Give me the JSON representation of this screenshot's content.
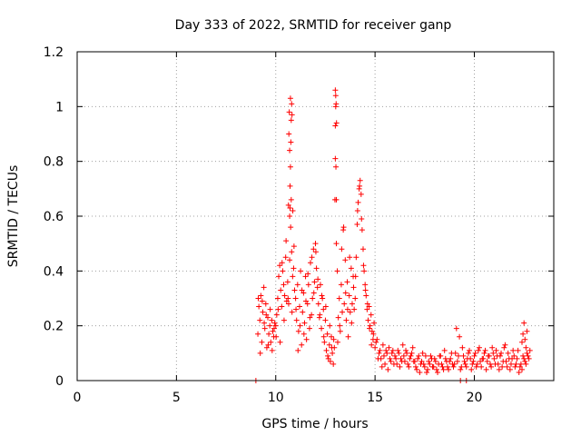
{
  "chart_data": {
    "type": "scatter",
    "title": "Day 333 of 2022, SRMTID for receiver ganp",
    "xlabel": "GPS time / hours",
    "ylabel": "SRMTID / TECUs",
    "xlim": [
      0,
      24
    ],
    "ylim": [
      0,
      1.2
    ],
    "xticks": [
      0,
      5,
      10,
      15,
      20
    ],
    "xtick_labels": [
      "0",
      "5",
      "10",
      "15",
      "20"
    ],
    "yticks": [
      0,
      0.2,
      0.4,
      0.6,
      0.8,
      1.0,
      1.2
    ],
    "ytick_labels": [
      "0",
      "0.2",
      "0.4",
      "0.6",
      "0.8",
      "1",
      "1.2"
    ],
    "grid": true,
    "marker": "+",
    "color": "#ff0000",
    "series": [
      {
        "name": "SRMTID",
        "x": [
          9.0,
          19.3,
          19.6,
          9.1,
          9.15,
          9.2,
          9.25,
          9.3,
          9.35,
          9.4,
          9.45,
          9.5,
          9.55,
          9.6,
          9.65,
          9.7,
          9.75,
          9.8,
          9.85,
          9.9,
          9.95,
          9.12,
          9.22,
          9.32,
          9.42,
          9.52,
          9.62,
          9.72,
          9.82,
          9.92,
          10.0,
          10.05,
          10.1,
          10.15,
          10.2,
          10.25,
          10.3,
          10.35,
          10.4,
          10.45,
          10.5,
          10.55,
          10.6,
          10.65,
          10.7,
          10.75,
          10.8,
          10.85,
          10.9,
          10.95,
          10.02,
          10.12,
          10.22,
          10.32,
          10.42,
          10.52,
          10.62,
          10.72,
          10.82,
          10.92,
          10.7,
          10.72,
          10.74,
          10.76,
          10.78,
          10.66,
          10.68,
          10.8,
          10.82,
          10.7,
          10.74,
          10.78,
          10.64,
          10.86,
          11.0,
          11.05,
          11.1,
          11.15,
          11.2,
          11.25,
          11.3,
          11.35,
          11.4,
          11.45,
          11.5,
          11.55,
          11.6,
          11.65,
          11.7,
          11.75,
          11.8,
          11.85,
          11.9,
          11.95,
          11.02,
          11.12,
          11.22,
          11.32,
          11.42,
          11.52,
          11.62,
          11.72,
          11.82,
          11.92,
          12.0,
          12.05,
          12.1,
          12.15,
          12.2,
          12.25,
          12.3,
          12.35,
          12.4,
          12.45,
          12.5,
          12.55,
          12.6,
          12.65,
          12.7,
          12.75,
          12.8,
          12.85,
          12.9,
          12.95,
          12.02,
          12.12,
          12.22,
          12.32,
          12.42,
          12.52,
          12.62,
          12.72,
          12.82,
          12.92,
          13.0,
          13.02,
          13.04,
          13.06,
          12.98,
          13.0,
          13.03,
          13.05,
          13.0,
          13.02,
          13.05,
          13.1,
          13.15,
          13.2,
          13.25,
          13.3,
          13.35,
          13.4,
          13.45,
          13.5,
          13.55,
          13.6,
          13.65,
          13.7,
          13.75,
          13.8,
          13.85,
          13.9,
          13.95,
          13.12,
          13.22,
          13.32,
          13.42,
          13.52,
          13.62,
          13.72,
          13.82,
          13.92,
          14.0,
          14.05,
          14.1,
          14.15,
          14.2,
          14.25,
          14.3,
          14.35,
          14.4,
          14.45,
          14.5,
          14.55,
          14.6,
          14.65,
          14.7,
          14.75,
          14.8,
          14.85,
          14.9,
          14.95,
          14.02,
          14.12,
          14.22,
          14.32,
          14.42,
          14.52,
          14.62,
          14.72,
          14.82,
          14.92,
          15.0,
          15.1,
          15.2,
          15.3,
          15.4,
          15.5,
          15.6,
          15.7,
          15.8,
          15.9,
          16.0,
          16.1,
          16.2,
          16.3,
          16.4,
          16.5,
          16.6,
          16.7,
          16.8,
          16.9,
          15.05,
          15.15,
          15.25,
          15.35,
          15.45,
          15.55,
          15.65,
          15.75,
          15.85,
          15.95,
          16.05,
          16.15,
          16.25,
          16.35,
          16.45,
          16.55,
          16.65,
          16.75,
          16.85,
          16.95,
          17.0,
          17.1,
          17.2,
          17.3,
          17.4,
          17.5,
          17.6,
          17.7,
          17.8,
          17.9,
          18.0,
          18.1,
          18.2,
          18.3,
          18.4,
          18.5,
          18.6,
          18.7,
          18.8,
          18.9,
          17.05,
          17.15,
          17.25,
          17.35,
          17.45,
          17.55,
          17.65,
          17.75,
          17.85,
          17.95,
          18.05,
          18.15,
          18.25,
          18.35,
          18.45,
          18.55,
          18.65,
          18.75,
          18.85,
          18.95,
          19.0,
          19.1,
          19.2,
          19.3,
          19.4,
          19.5,
          19.6,
          19.7,
          19.8,
          19.9,
          20.0,
          20.1,
          20.2,
          20.3,
          20.4,
          20.5,
          20.6,
          20.7,
          20.8,
          20.9,
          19.05,
          19.15,
          19.25,
          19.35,
          19.45,
          19.55,
          19.65,
          19.75,
          19.85,
          19.95,
          20.05,
          20.15,
          20.25,
          20.35,
          20.45,
          20.55,
          20.65,
          20.75,
          20.85,
          20.95,
          21.0,
          21.1,
          21.2,
          21.3,
          21.4,
          21.5,
          21.6,
          21.7,
          21.8,
          21.9,
          22.0,
          22.1,
          22.2,
          22.3,
          22.4,
          22.5,
          22.6,
          22.7,
          22.8,
          21.05,
          21.15,
          21.25,
          21.35,
          21.45,
          21.55,
          21.65,
          21.75,
          21.85,
          21.95,
          22.05,
          22.15,
          22.25,
          22.35,
          22.45,
          22.55,
          22.65,
          22.75,
          22.4,
          22.45,
          22.5,
          22.55,
          22.6,
          22.65
        ],
        "y": [
          0.0,
          0.0,
          0.0,
          0.17,
          0.27,
          0.22,
          0.31,
          0.14,
          0.25,
          0.34,
          0.19,
          0.28,
          0.12,
          0.23,
          0.17,
          0.2,
          0.14,
          0.22,
          0.18,
          0.16,
          0.21,
          0.3,
          0.1,
          0.29,
          0.21,
          0.24,
          0.13,
          0.26,
          0.11,
          0.19,
          0.2,
          0.24,
          0.3,
          0.38,
          0.42,
          0.33,
          0.27,
          0.4,
          0.35,
          0.31,
          0.45,
          0.29,
          0.36,
          0.28,
          0.44,
          0.56,
          0.47,
          0.38,
          0.41,
          0.33,
          0.16,
          0.26,
          0.14,
          0.43,
          0.22,
          0.51,
          0.3,
          0.63,
          0.25,
          0.49,
          0.6,
          0.71,
          0.78,
          0.87,
          0.95,
          0.9,
          0.98,
          1.01,
          0.97,
          0.84,
          1.03,
          0.66,
          0.64,
          0.62,
          0.3,
          0.22,
          0.35,
          0.18,
          0.27,
          0.4,
          0.13,
          0.25,
          0.32,
          0.21,
          0.38,
          0.15,
          0.28,
          0.35,
          0.19,
          0.43,
          0.24,
          0.3,
          0.48,
          0.36,
          0.26,
          0.11,
          0.2,
          0.33,
          0.17,
          0.29,
          0.39,
          0.23,
          0.45,
          0.32,
          0.5,
          0.41,
          0.34,
          0.28,
          0.23,
          0.35,
          0.19,
          0.3,
          0.26,
          0.14,
          0.22,
          0.11,
          0.17,
          0.08,
          0.13,
          0.07,
          0.16,
          0.1,
          0.06,
          0.12,
          0.47,
          0.37,
          0.24,
          0.31,
          0.16,
          0.27,
          0.09,
          0.2,
          0.12,
          0.15,
          1.06,
          1.04,
          1.01,
          0.94,
          0.66,
          0.81,
          0.78,
          0.66,
          0.93,
          1.0,
          0.5,
          0.4,
          0.23,
          0.3,
          0.18,
          0.35,
          0.25,
          0.55,
          0.28,
          0.44,
          0.22,
          0.36,
          0.16,
          0.31,
          0.25,
          0.41,
          0.28,
          0.38,
          0.26,
          0.14,
          0.2,
          0.48,
          0.56,
          0.32,
          0.26,
          0.45,
          0.21,
          0.34,
          0.3,
          0.45,
          0.57,
          0.65,
          0.7,
          0.73,
          0.68,
          0.55,
          0.48,
          0.4,
          0.35,
          0.31,
          0.26,
          0.22,
          0.27,
          0.2,
          0.24,
          0.18,
          0.15,
          0.21,
          0.38,
          0.62,
          0.71,
          0.59,
          0.42,
          0.33,
          0.28,
          0.19,
          0.13,
          0.17,
          0.12,
          0.15,
          0.1,
          0.08,
          0.13,
          0.06,
          0.1,
          0.12,
          0.07,
          0.11,
          0.09,
          0.06,
          0.1,
          0.08,
          0.13,
          0.07,
          0.1,
          0.05,
          0.09,
          0.12,
          0.14,
          0.08,
          0.11,
          0.05,
          0.09,
          0.11,
          0.04,
          0.08,
          0.1,
          0.06,
          0.08,
          0.11,
          0.05,
          0.07,
          0.09,
          0.11,
          0.06,
          0.08,
          0.1,
          0.07,
          0.07,
          0.04,
          0.09,
          0.06,
          0.1,
          0.05,
          0.03,
          0.07,
          0.09,
          0.05,
          0.08,
          0.04,
          0.06,
          0.09,
          0.05,
          0.11,
          0.07,
          0.04,
          0.08,
          0.06,
          0.05,
          0.08,
          0.03,
          0.07,
          0.06,
          0.09,
          0.04,
          0.06,
          0.08,
          0.05,
          0.07,
          0.03,
          0.09,
          0.06,
          0.04,
          0.08,
          0.05,
          0.07,
          0.1,
          0.05,
          0.06,
          0.19,
          0.09,
          0.04,
          0.12,
          0.07,
          0.05,
          0.1,
          0.08,
          0.06,
          0.09,
          0.05,
          0.11,
          0.07,
          0.08,
          0.1,
          0.04,
          0.09,
          0.06,
          0.12,
          0.1,
          0.07,
          0.16,
          0.05,
          0.09,
          0.06,
          0.08,
          0.11,
          0.04,
          0.07,
          0.1,
          0.06,
          0.12,
          0.05,
          0.08,
          0.11,
          0.07,
          0.09,
          0.05,
          0.1,
          0.08,
          0.11,
          0.06,
          0.09,
          0.05,
          0.12,
          0.07,
          0.1,
          0.04,
          0.08,
          0.09,
          0.06,
          0.11,
          0.05,
          0.04,
          0.08,
          0.06,
          0.09,
          0.11,
          0.06,
          0.09,
          0.04,
          0.1,
          0.07,
          0.13,
          0.05,
          0.08,
          0.06,
          0.11,
          0.05,
          0.08,
          0.03,
          0.06,
          0.09,
          0.07,
          0.1,
          0.08,
          0.14,
          0.17,
          0.21,
          0.15,
          0.12,
          0.18
        ]
      }
    ]
  }
}
